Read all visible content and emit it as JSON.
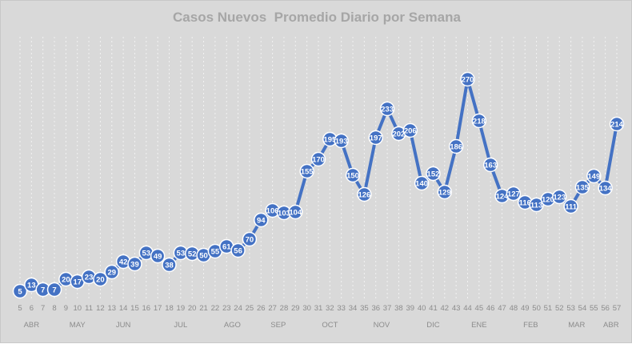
{
  "chart_data": {
    "type": "line",
    "title": "Casos Nuevos  Promedio Diario por Semana",
    "xlabel": "",
    "ylabel": "",
    "x": [
      5,
      6,
      7,
      8,
      9,
      10,
      11,
      12,
      13,
      14,
      15,
      16,
      17,
      18,
      19,
      20,
      21,
      22,
      23,
      24,
      25,
      26,
      27,
      28,
      29,
      30,
      31,
      32,
      33,
      34,
      35,
      36,
      37,
      38,
      39,
      40,
      41,
      42,
      43,
      44,
      45,
      46,
      47,
      48,
      49,
      50,
      51,
      52,
      53,
      54,
      55,
      56,
      57
    ],
    "values": [
      5,
      13,
      7,
      7,
      20,
      17,
      23,
      20,
      29,
      42,
      39,
      53,
      49,
      38,
      53,
      52,
      50,
      55,
      61,
      56,
      70,
      94,
      106,
      103,
      104,
      155,
      170,
      195,
      193,
      150,
      126,
      197,
      233,
      202,
      206,
      140,
      152,
      129,
      186,
      270,
      218,
      163,
      124,
      127,
      116,
      113,
      120,
      123,
      111,
      135,
      149,
      134,
      214
    ],
    "month_labels": [
      {
        "label": "ABR",
        "at": 6
      },
      {
        "label": "MAY",
        "at": 10
      },
      {
        "label": "JUN",
        "at": 14
      },
      {
        "label": "JUL",
        "at": 19
      },
      {
        "label": "AGO",
        "at": 23.5
      },
      {
        "label": "SEP",
        "at": 27.5
      },
      {
        "label": "OCT",
        "at": 32
      },
      {
        "label": "NOV",
        "at": 36.5
      },
      {
        "label": "DIC",
        "at": 41
      },
      {
        "label": "ENE",
        "at": 45
      },
      {
        "label": "FEB",
        "at": 49.5
      },
      {
        "label": "MAR",
        "at": 53.5
      },
      {
        "label": "ABR",
        "at": 56.5
      }
    ],
    "ylim": [
      0,
      300
    ],
    "grid": "vertical dotted",
    "legend": "none",
    "colors": {
      "series": "#4472c4",
      "background": "#d9d9d9",
      "text": "#a6a6a6"
    }
  }
}
